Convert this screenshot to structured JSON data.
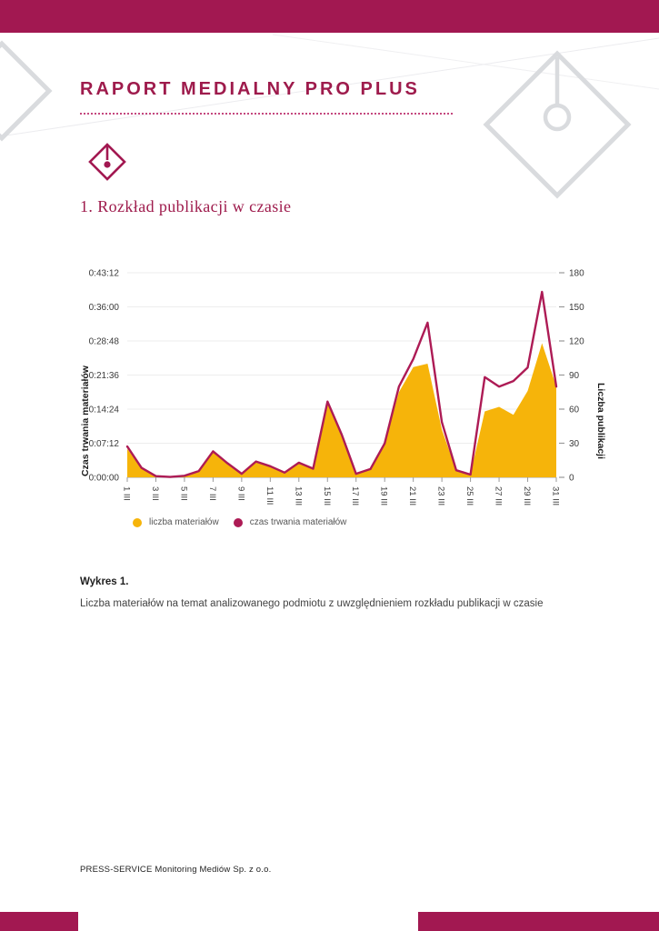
{
  "page": {
    "title": "RAPORT MEDIALNY PRO PLUS",
    "section_heading": "1. Rozkład publikacji w czasie",
    "figure_label": "Wykres 1.",
    "figure_caption": "Liczba materiałów na temat analizowanego podmiotu z uwzględnieniem rozkładu publikacji w czasie",
    "footer": "PRESS-SERVICE Monitoring Mediów Sp. z o.o."
  },
  "colors": {
    "crimson": "#a21851",
    "title_text": "#9e1b4c",
    "area_yellow": "#f6b40a",
    "line_crimson": "#ad1b55",
    "grid": "#ededed",
    "axis_text": "#3a3a3a",
    "decor_gray": "#d9dbde"
  },
  "chart_data": {
    "type": "area",
    "description": "Daily number of publications (yellow area, right axis) and total duration of materials (crimson line, left axis) for March (III), days 1-31",
    "days": [
      1,
      2,
      3,
      4,
      5,
      6,
      7,
      8,
      9,
      10,
      11,
      12,
      13,
      14,
      15,
      16,
      17,
      18,
      19,
      20,
      21,
      22,
      23,
      24,
      25,
      26,
      27,
      28,
      29,
      30,
      31
    ],
    "x_tick_labels": [
      "1 III",
      "3 III",
      "5 III",
      "7 III",
      "9 III",
      "11 III",
      "13 III",
      "15 III",
      "17 III",
      "19 III",
      "21 III",
      "23 III",
      "25 III",
      "27 III",
      "29 III",
      "31 III"
    ],
    "series": [
      {
        "name": "liczba materiałów",
        "type": "area",
        "axis": "right",
        "color": "#f6b40a",
        "values": [
          25,
          8,
          1,
          0,
          1,
          5,
          23,
          12,
          3,
          13,
          9,
          4,
          12,
          7,
          65,
          36,
          3,
          7,
          30,
          75,
          97,
          100,
          42,
          6,
          3,
          58,
          62,
          55,
          76,
          118,
          80
        ]
      },
      {
        "name": "czas trwania materiałów",
        "type": "line",
        "axis": "left",
        "color": "#ad1b55",
        "values": [
          "0:06:30",
          "0:02:00",
          "0:00:15",
          "0:00:05",
          "0:00:20",
          "0:01:20",
          "0:05:30",
          "0:03:00",
          "0:00:45",
          "0:03:20",
          "0:02:20",
          "0:01:00",
          "0:03:05",
          "0:01:50",
          "0:16:00",
          "0:09:00",
          "0:00:45",
          "0:01:45",
          "0:07:10",
          "0:19:10",
          "0:25:00",
          "0:32:40",
          "0:11:40",
          "0:01:30",
          "0:00:35",
          "0:21:10",
          "0:19:10",
          "0:20:20",
          "0:23:10",
          "0:39:10",
          "0:19:10"
        ]
      }
    ],
    "left_axis": {
      "title": "Czas trwania materiałów",
      "ticks": [
        "0:00:00",
        "0:07:12",
        "0:14:24",
        "0:21:36",
        "0:28:48",
        "0:36:00",
        "0:43:12"
      ],
      "max_seconds": 2592
    },
    "right_axis": {
      "title": "Liczba publikacji",
      "ticks": [
        0,
        30,
        60,
        90,
        120,
        150,
        180
      ],
      "max": 180
    },
    "legend": [
      {
        "label": "liczba materiałów",
        "color": "#f6b40a"
      },
      {
        "label": "czas trwania materiałów",
        "color": "#ad1b55"
      }
    ],
    "grid": "horizontal-light",
    "legend_position": "bottom-left"
  }
}
